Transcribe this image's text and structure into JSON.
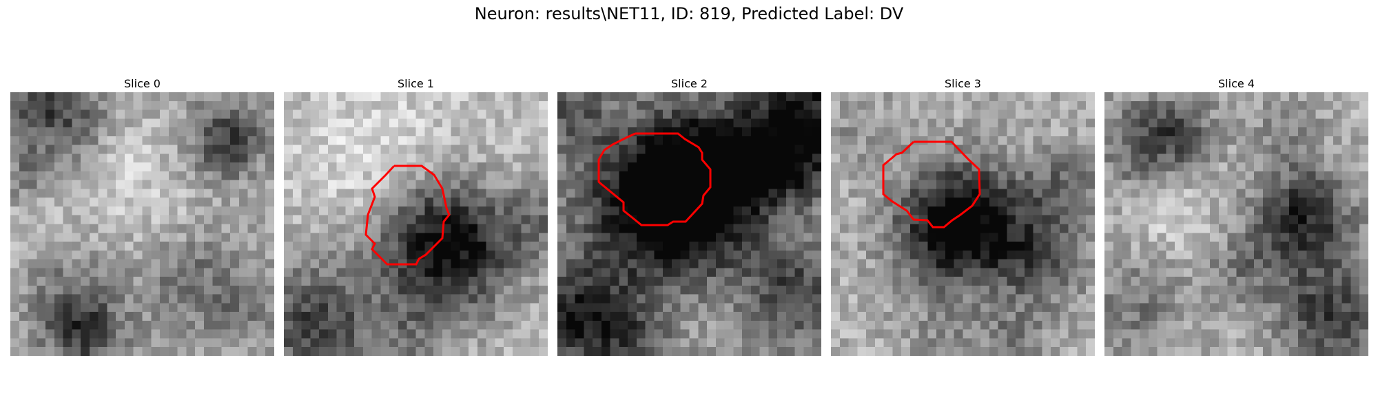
{
  "figure": {
    "suptitle": "Neuron: results\\NET11, ID: 819, Predicted Label: DV"
  },
  "panels": [
    {
      "title": "Slice 0",
      "description": "grayscale microscopy patch, no contour",
      "has_contour": false,
      "contour_color": "#ff0000"
    },
    {
      "title": "Slice 1",
      "description": "grayscale microscopy patch with dark round cell body, red contour",
      "has_contour": true,
      "contour_color": "#ff0000"
    },
    {
      "title": "Slice 2",
      "description": "grayscale microscopy patch with large dark cell body, red contour",
      "has_contour": true,
      "contour_color": "#ff0000"
    },
    {
      "title": "Slice 3",
      "description": "grayscale microscopy patch with dark region, red contour",
      "has_contour": true,
      "contour_color": "#ff0000"
    },
    {
      "title": "Slice 4",
      "description": "grayscale microscopy patch, no contour",
      "has_contour": false,
      "contour_color": "#ff0000"
    }
  ]
}
